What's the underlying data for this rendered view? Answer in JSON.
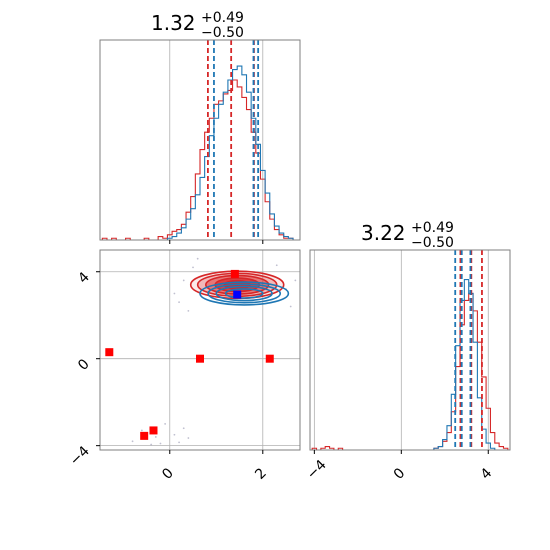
{
  "figure": {
    "panel_titles": [
      {
        "center": "1.32",
        "upper": "+0.49",
        "lower": "−0.50"
      },
      {
        "center": "3.22",
        "upper": "+0.49",
        "lower": "−0.50"
      }
    ],
    "colors": {
      "red": "#d62728",
      "blue": "#1f77b4",
      "marker_red": "#ff0000",
      "marker_blue": "#0000ff",
      "grid": "#b0b0b0",
      "frame": "#7f7f7f"
    }
  },
  "chart_data": [
    {
      "type": "histogram",
      "panel": "marginal-x",
      "xlim": [
        -1.5,
        2.8
      ],
      "ylim": [
        0,
        1.15
      ],
      "grid": true,
      "series": [
        {
          "color": "#d62728",
          "bin_centers": [
            -1.4,
            -1.3,
            -1.2,
            -1.1,
            -1.0,
            -0.9,
            -0.8,
            -0.7,
            -0.6,
            -0.5,
            -0.4,
            -0.3,
            -0.2,
            -0.1,
            0.0,
            0.1,
            0.2,
            0.3,
            0.4,
            0.5,
            0.6,
            0.7,
            0.8,
            0.9,
            1.0,
            1.1,
            1.2,
            1.3,
            1.4,
            1.5,
            1.6,
            1.7,
            1.8,
            1.9,
            2.0,
            2.1,
            2.2,
            2.3,
            2.4,
            2.5,
            2.6,
            2.7
          ],
          "values": [
            0.01,
            0.0,
            0.01,
            0.0,
            0.0,
            0.01,
            0.0,
            0.0,
            0.0,
            0.01,
            0.0,
            0.0,
            0.02,
            0.01,
            0.03,
            0.05,
            0.06,
            0.09,
            0.16,
            0.25,
            0.38,
            0.52,
            0.62,
            0.7,
            0.78,
            0.8,
            0.84,
            0.86,
            0.92,
            0.88,
            0.82,
            0.75,
            0.62,
            0.5,
            0.35,
            0.22,
            0.12,
            0.06,
            0.03,
            0.01,
            0.01,
            0.0
          ]
        },
        {
          "color": "#1f77b4",
          "bin_centers": [
            -1.4,
            -1.3,
            -1.2,
            -1.1,
            -1.0,
            -0.9,
            -0.8,
            -0.7,
            -0.6,
            -0.5,
            -0.4,
            -0.3,
            -0.2,
            -0.1,
            0.0,
            0.1,
            0.2,
            0.3,
            0.4,
            0.5,
            0.6,
            0.7,
            0.8,
            0.9,
            1.0,
            1.1,
            1.2,
            1.3,
            1.4,
            1.5,
            1.6,
            1.7,
            1.8,
            1.9,
            2.0,
            2.1,
            2.2,
            2.3,
            2.4,
            2.5,
            2.6,
            2.7
          ],
          "values": [
            0,
            0,
            0,
            0,
            0,
            0,
            0,
            0,
            0,
            0,
            0,
            0,
            0,
            0,
            0.01,
            0.02,
            0.04,
            0.07,
            0.12,
            0.18,
            0.26,
            0.36,
            0.48,
            0.6,
            0.7,
            0.78,
            0.85,
            0.92,
            0.98,
            1.0,
            0.95,
            0.85,
            0.7,
            0.55,
            0.4,
            0.27,
            0.15,
            0.08,
            0.04,
            0.02,
            0.01,
            0.0
          ]
        }
      ],
      "quantile_lines": [
        {
          "color": "#d62728",
          "x": [
            0.82,
            1.32,
            1.81
          ]
        },
        {
          "color": "#1f77b4",
          "x": [
            0.95,
            1.8,
            1.9
          ]
        }
      ]
    },
    {
      "type": "contour-scatter",
      "panel": "joint",
      "xlim": [
        -1.5,
        2.8
      ],
      "ylim": [
        -4.2,
        5.0
      ],
      "x_ticks": [
        0,
        2
      ],
      "x_tick_labels": [
        "0",
        "2"
      ],
      "y_ticks": [
        -4,
        0,
        4
      ],
      "y_tick_labels": [
        "−4",
        "0",
        "4"
      ],
      "grid": true,
      "contours": [
        {
          "color": "#d62728",
          "cx": 1.45,
          "cy": 3.4,
          "rx": [
            2.0,
            1.7,
            1.35,
            0.95,
            0.55
          ],
          "ry": [
            1.25,
            1.05,
            0.85,
            0.62,
            0.38
          ],
          "fill_opacity": [
            0.1,
            0.25,
            0.45,
            0.7,
            0.9
          ]
        },
        {
          "color": "#1f77b4",
          "cx": 1.6,
          "cy": 3.0,
          "rx": [
            1.9,
            1.55,
            1.2,
            0.8
          ],
          "ry": [
            1.05,
            0.85,
            0.65,
            0.42
          ],
          "fill_opacity": [
            0.0,
            0.0,
            0.0,
            0.0
          ]
        }
      ],
      "scatter_red_markers": [
        {
          "x": -1.3,
          "y": 0.3
        },
        {
          "x": 0.65,
          "y": 0.0
        },
        {
          "x": 2.15,
          "y": 0.0
        },
        {
          "x": -0.55,
          "y": -3.55
        },
        {
          "x": -0.35,
          "y": -3.3
        },
        {
          "x": 1.4,
          "y": 3.9
        }
      ],
      "scatter_blue_markers": [
        {
          "x": 1.45,
          "y": 2.95
        }
      ]
    },
    {
      "type": "histogram",
      "panel": "marginal-y",
      "xlim": [
        -4.2,
        5.0
      ],
      "ylim": [
        0,
        1.15
      ],
      "x_ticks": [
        -4,
        0,
        4
      ],
      "x_tick_labels": [
        "−4",
        "0",
        "4"
      ],
      "grid": true,
      "series": [
        {
          "color": "#d62728",
          "bin_centers": [
            -4.0,
            -3.8,
            -3.6,
            -3.4,
            -3.2,
            -3.0,
            -2.8,
            -2.6,
            -2.4,
            -2.2,
            -2.0,
            -1.8,
            -1.6,
            -1.4,
            -1.2,
            -1.0,
            -0.8,
            -0.6,
            -0.4,
            -0.2,
            0.0,
            0.2,
            0.4,
            0.6,
            0.8,
            1.0,
            1.2,
            1.4,
            1.6,
            1.8,
            2.0,
            2.2,
            2.4,
            2.6,
            2.8,
            3.0,
            3.2,
            3.4,
            3.6,
            3.8,
            4.0,
            4.2,
            4.4,
            4.6,
            4.8
          ],
          "values": [
            0.01,
            0.0,
            0.01,
            0.02,
            0.01,
            0.0,
            0.01,
            0.0,
            0.0,
            0.0,
            0.0,
            0.0,
            0.0,
            0.0,
            0.0,
            0.0,
            0.0,
            0.0,
            0.0,
            0.0,
            0.0,
            0.0,
            0.0,
            0.0,
            0.0,
            0.0,
            0.0,
            0.0,
            0.01,
            0.02,
            0.05,
            0.1,
            0.22,
            0.48,
            0.72,
            0.86,
            0.9,
            0.8,
            0.62,
            0.42,
            0.24,
            0.1,
            0.04,
            0.02,
            0.01
          ]
        },
        {
          "color": "#1f77b4",
          "bin_centers": [
            -4.0,
            -3.8,
            -3.6,
            -3.4,
            -3.2,
            -3.0,
            -2.8,
            -2.6,
            -2.4,
            -2.2,
            -2.0,
            -1.8,
            -1.6,
            -1.4,
            -1.2,
            -1.0,
            -0.8,
            -0.6,
            -0.4,
            -0.2,
            0.0,
            0.2,
            0.4,
            0.6,
            0.8,
            1.0,
            1.2,
            1.4,
            1.6,
            1.8,
            2.0,
            2.2,
            2.4,
            2.6,
            2.8,
            3.0,
            3.2,
            3.4,
            3.6,
            3.8,
            4.0,
            4.2,
            4.4,
            4.6,
            4.8
          ],
          "values": [
            0,
            0,
            0,
            0,
            0,
            0,
            0,
            0,
            0,
            0,
            0,
            0,
            0,
            0,
            0,
            0,
            0,
            0,
            0,
            0,
            0,
            0,
            0,
            0,
            0,
            0,
            0,
            0,
            0.01,
            0.02,
            0.06,
            0.14,
            0.32,
            0.6,
            0.86,
            0.98,
            0.9,
            0.62,
            0.3,
            0.12,
            0.04,
            0.01,
            0,
            0,
            0
          ]
        }
      ],
      "quantile_lines": [
        {
          "color": "#d62728",
          "x": [
            2.72,
            3.22,
            3.71
          ]
        },
        {
          "color": "#1f77b4",
          "x": [
            2.48,
            2.78,
            3.18
          ]
        }
      ]
    }
  ]
}
